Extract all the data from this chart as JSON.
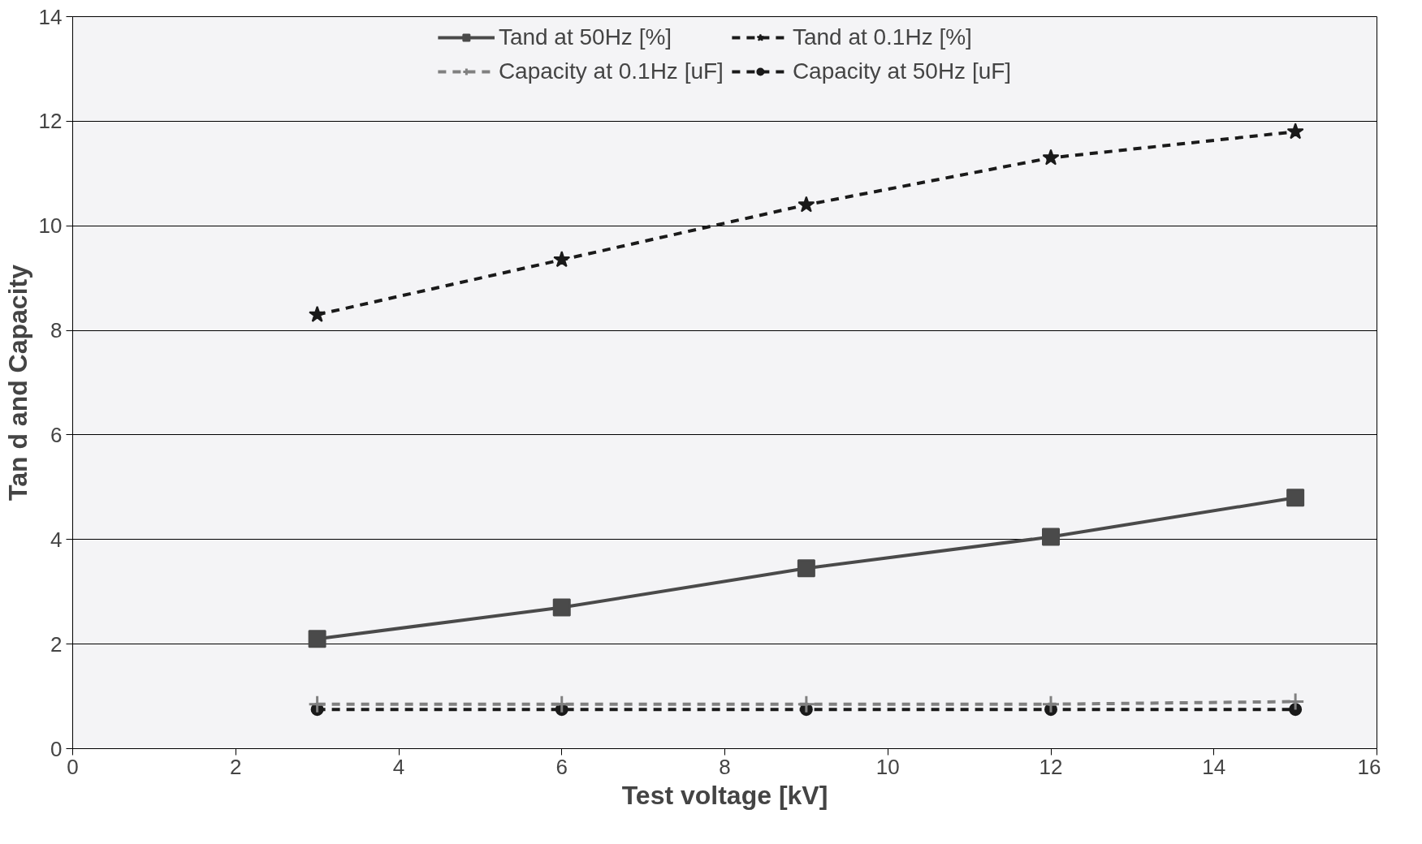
{
  "chart_data": {
    "type": "line",
    "xlabel": "Test voltage [kV]",
    "ylabel": "Tan d and Capacity",
    "x": [
      3,
      6,
      9,
      12,
      15
    ],
    "series": [
      {
        "name": "Tand at 50Hz [%]",
        "color": "#4a4a4a",
        "values": [
          2.1,
          2.7,
          3.45,
          4.05,
          4.8
        ],
        "marker": "square",
        "line_style": "solid"
      },
      {
        "name": "Tand at 0.1Hz [%]",
        "color": "#1a1a1a",
        "values": [
          8.3,
          9.35,
          10.4,
          11.3,
          11.8
        ],
        "marker": "star",
        "line_style": "dashed"
      },
      {
        "name": "Capacity at 0.1Hz [uF]",
        "color": "#808080",
        "values": [
          0.85,
          0.85,
          0.85,
          0.85,
          0.9
        ],
        "marker": "cross",
        "line_style": "dashed"
      },
      {
        "name": "Capacity at 50Hz [uF]",
        "color": "#1a1a1a",
        "values": [
          0.75,
          0.75,
          0.75,
          0.75,
          0.75
        ],
        "marker": "circle",
        "line_style": "dashed"
      }
    ],
    "xlim": [
      0,
      16
    ],
    "xticks": [
      0,
      2,
      4,
      6,
      8,
      10,
      12,
      14,
      16
    ],
    "ylim": [
      0,
      14
    ],
    "yticks": [
      0,
      2,
      4,
      6,
      8,
      10,
      12,
      14
    ],
    "grid": "y",
    "legend": "top"
  }
}
